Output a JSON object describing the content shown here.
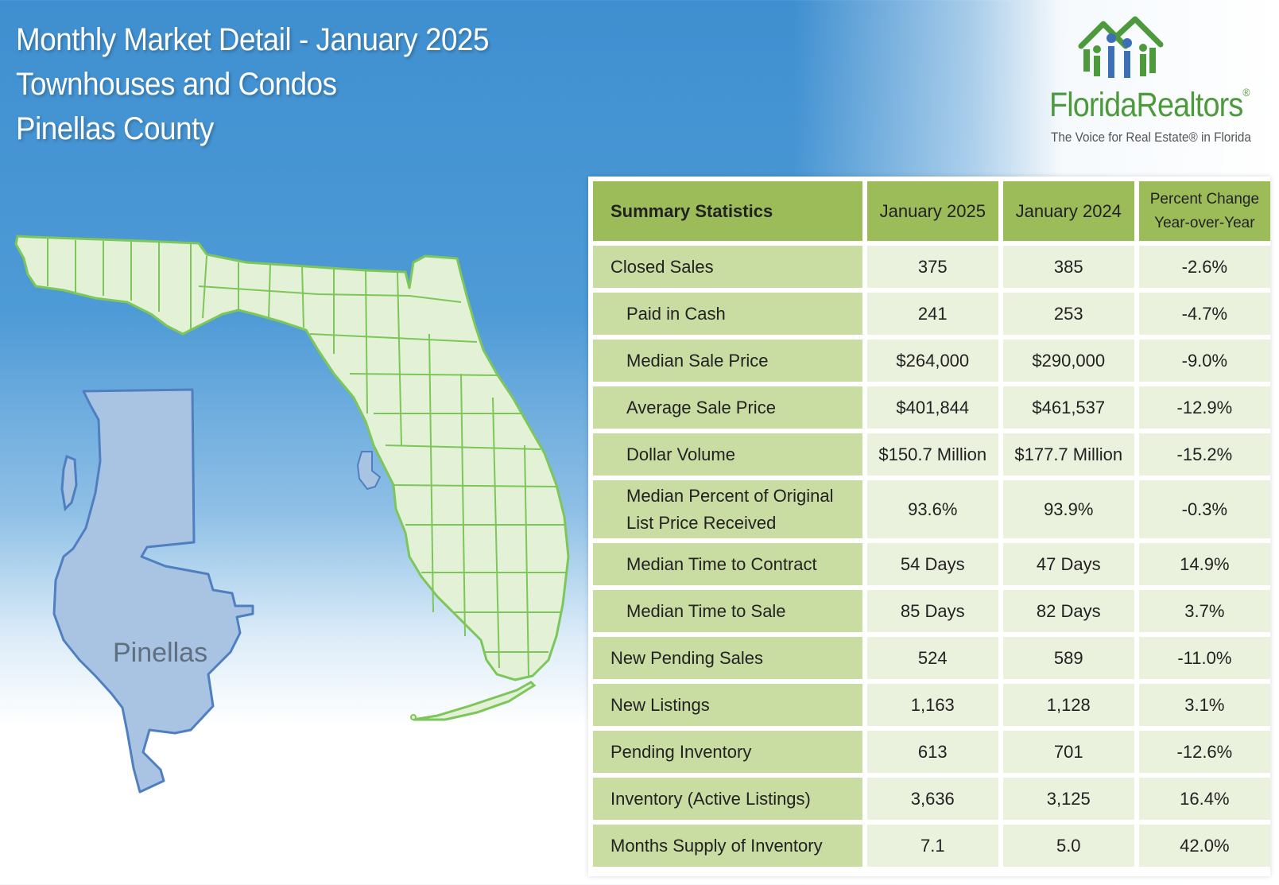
{
  "header": {
    "line1": "Monthly Market Detail - January 2025",
    "line2": "Townhouses and Condos",
    "line3": "Pinellas County"
  },
  "logo": {
    "name_part1": "Florida",
    "name_part2": "Realtors",
    "registered": "®",
    "tagline": "The Voice for Real Estate® in Florida",
    "icon": "people-house-logo-icon",
    "color": "#4d9a3c"
  },
  "map": {
    "county_label": "Pinellas",
    "state_fill": "#e3f1d6",
    "state_stroke": "#7cc65a",
    "county_fill": "#a9c4e3",
    "county_stroke": "#4f7fc0"
  },
  "table": {
    "headers": [
      "Summary Statistics",
      "January 2025",
      "January 2024",
      "Percent Change",
      "Year-over-Year"
    ],
    "rows": [
      {
        "label": "Closed Sales",
        "jan2025": "375",
        "jan2024": "385",
        "change": "-2.6%"
      },
      {
        "label": "Paid in Cash",
        "jan2025": "241",
        "jan2024": "253",
        "change": "-4.7%"
      },
      {
        "label": "Median Sale Price",
        "jan2025": "$264,000",
        "jan2024": "$290,000",
        "change": "-9.0%"
      },
      {
        "label": "Average Sale Price",
        "jan2025": "$401,844",
        "jan2024": "$461,537",
        "change": "-12.9%"
      },
      {
        "label": "Dollar Volume",
        "jan2025": "$150.7 Million",
        "jan2024": "$177.7 Million",
        "change": "-15.2%"
      },
      {
        "label": "Median Percent of Original",
        "label2": "List Price Received",
        "jan2025": "93.6%",
        "jan2024": "93.9%",
        "change": "-0.3%"
      },
      {
        "label": "Median Time to Contract",
        "jan2025": "54 Days",
        "jan2024": "47 Days",
        "change": "14.9%"
      },
      {
        "label": "Median Time to Sale",
        "jan2025": "85 Days",
        "jan2024": "82 Days",
        "change": "3.7%"
      },
      {
        "label": "New Pending Sales",
        "jan2025": "524",
        "jan2024": "589",
        "change": "-11.0%"
      },
      {
        "label": "New Listings",
        "jan2025": "1,163",
        "jan2024": "1,128",
        "change": "3.1%"
      },
      {
        "label": "Pending Inventory",
        "jan2025": "613",
        "jan2024": "701",
        "change": "-12.6%"
      },
      {
        "label": "Inventory (Active Listings)",
        "jan2025": "3,636",
        "jan2024": "3,125",
        "change": "16.4%"
      },
      {
        "label": "Months Supply of Inventory",
        "jan2025": "7.1",
        "jan2024": "5.0",
        "change": "42.0%"
      }
    ],
    "header_color": "#9cbc59",
    "label_color": "#c9dca2",
    "value_color": "#eaf1dc"
  }
}
